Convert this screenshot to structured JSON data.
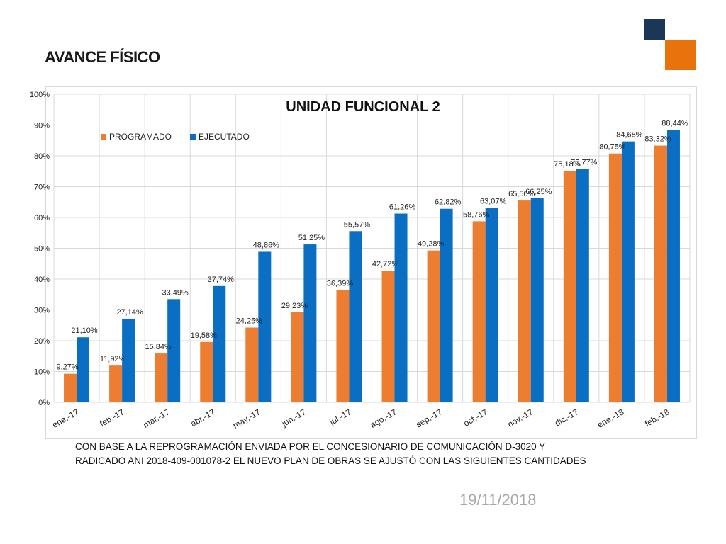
{
  "page": {
    "title": "AVANCE FÍSICO",
    "note_line1": "CON BASE A LA REPROGRAMACIÓN ENVIADA POR EL CONCESIONARIO DE COMUNICACIÓN D-3020 Y",
    "note_line2": "RADICADO ANI  2018-409-001078-2 EL NUEVO PLAN DE OBRAS SE AJUSTÓ CON LAS SIGUIENTES CANTIDADES",
    "date": "19/11/2018"
  },
  "colors": {
    "programado": "#ed7d31",
    "ejecutado": "#0a6fc2",
    "deco_navy": "#1b3656",
    "deco_orange": "#e8720c"
  },
  "chart_data": {
    "type": "bar",
    "title": "UNIDAD FUNCIONAL 2",
    "xlabel": "",
    "ylabel": "",
    "ylim": [
      0,
      100
    ],
    "y_ticks": [
      "0%",
      "10%",
      "20%",
      "30%",
      "40%",
      "50%",
      "60%",
      "70%",
      "80%",
      "90%",
      "100%"
    ],
    "grid": true,
    "legend_position": "top-left",
    "categories": [
      "ene.-17",
      "feb.-17",
      "mar.-17",
      "abr.-17",
      "may.-17",
      "jun.-17",
      "jul.-17",
      "ago.-17",
      "sep.-17",
      "oct.-17",
      "nov.-17",
      "dic.-17",
      "ene.-18",
      "feb.-18"
    ],
    "series": [
      {
        "name": "PROGRAMADO",
        "values": [
          9.27,
          11.92,
          15.84,
          19.58,
          24.25,
          29.23,
          36.39,
          42.72,
          49.28,
          58.76,
          65.5,
          75.18,
          80.75,
          83.32
        ],
        "labels": [
          "9,27%",
          "11,92%",
          "15,84%",
          "19,58%",
          "24,25%",
          "29,23%",
          "36,39%",
          "42,72%",
          "49,28%",
          "58,76%",
          "65,50%",
          "75,18%",
          "80,75%",
          "83,32%"
        ]
      },
      {
        "name": "EJECUTADO",
        "values": [
          21.1,
          27.14,
          33.49,
          37.74,
          48.86,
          51.25,
          55.57,
          61.26,
          62.82,
          63.07,
          66.25,
          75.77,
          84.68,
          88.44
        ],
        "labels": [
          "21,10%",
          "27,14%",
          "33,49%",
          "37,74%",
          "48,86%",
          "51,25%",
          "55,57%",
          "61,26%",
          "62,82%",
          "63,07%",
          "66,25%",
          "75,77%",
          "84,68%",
          "88,44%"
        ]
      }
    ]
  }
}
